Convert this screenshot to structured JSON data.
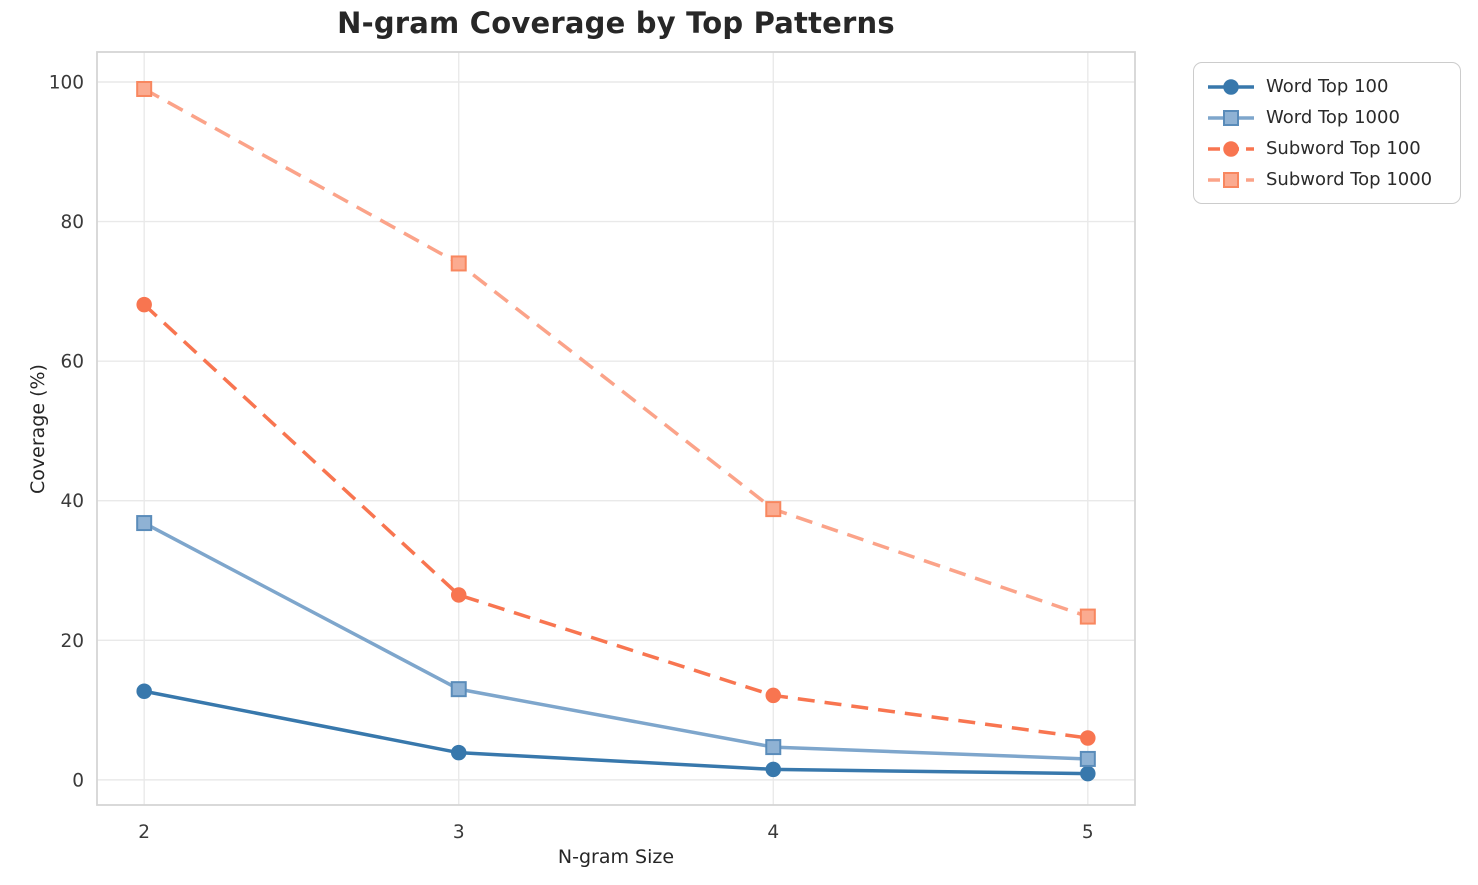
{
  "chart_data": {
    "type": "line",
    "title": "N-gram Coverage by Top Patterns",
    "xlabel": "N-gram Size",
    "ylabel": "Coverage (%)",
    "x": [
      2,
      3,
      4,
      5
    ],
    "xtick_labels": [
      "2",
      "3",
      "4",
      "5"
    ],
    "ytick_values": [
      0,
      20,
      40,
      60,
      80,
      100
    ],
    "ytick_labels": [
      "0",
      "20",
      "40",
      "60",
      "80",
      "100"
    ],
    "xlim": [
      1.85,
      5.15
    ],
    "ylim": [
      -3.6,
      104.3
    ],
    "grid": true,
    "legend_position": "outside-top-right",
    "series": [
      {
        "name": "Word Top 100",
        "values": [
          12.7,
          3.9,
          1.5,
          0.9
        ],
        "color": "#3878ac",
        "marker": "circle",
        "marker_fill": "#3878ac",
        "marker_edge": "#3878ac",
        "line_style": "solid"
      },
      {
        "name": "Word Top 1000",
        "values": [
          36.8,
          13.0,
          4.7,
          3.0
        ],
        "color": "#7ea6cc",
        "marker": "square",
        "marker_fill": "#8fb2d4",
        "marker_edge": "#5a8cba",
        "line_style": "solid"
      },
      {
        "name": "Subword Top 100",
        "values": [
          68.1,
          26.5,
          12.1,
          6.0
        ],
        "color": "#f87550",
        "marker": "circle",
        "marker_fill": "#f87550",
        "marker_edge": "#f87550",
        "line_style": "dashed"
      },
      {
        "name": "Subword Top 1000",
        "values": [
          99.0,
          74.0,
          38.8,
          23.4
        ],
        "color": "#fba389",
        "marker": "square",
        "marker_fill": "#fbab90",
        "marker_edge": "#f8875f",
        "line_style": "dashed"
      }
    ],
    "style": {
      "grid_color": "#e9e9e9",
      "spine_color": "#d5d5d5",
      "tick_label_color": "#3a3a3a",
      "background": "#ffffff"
    }
  }
}
